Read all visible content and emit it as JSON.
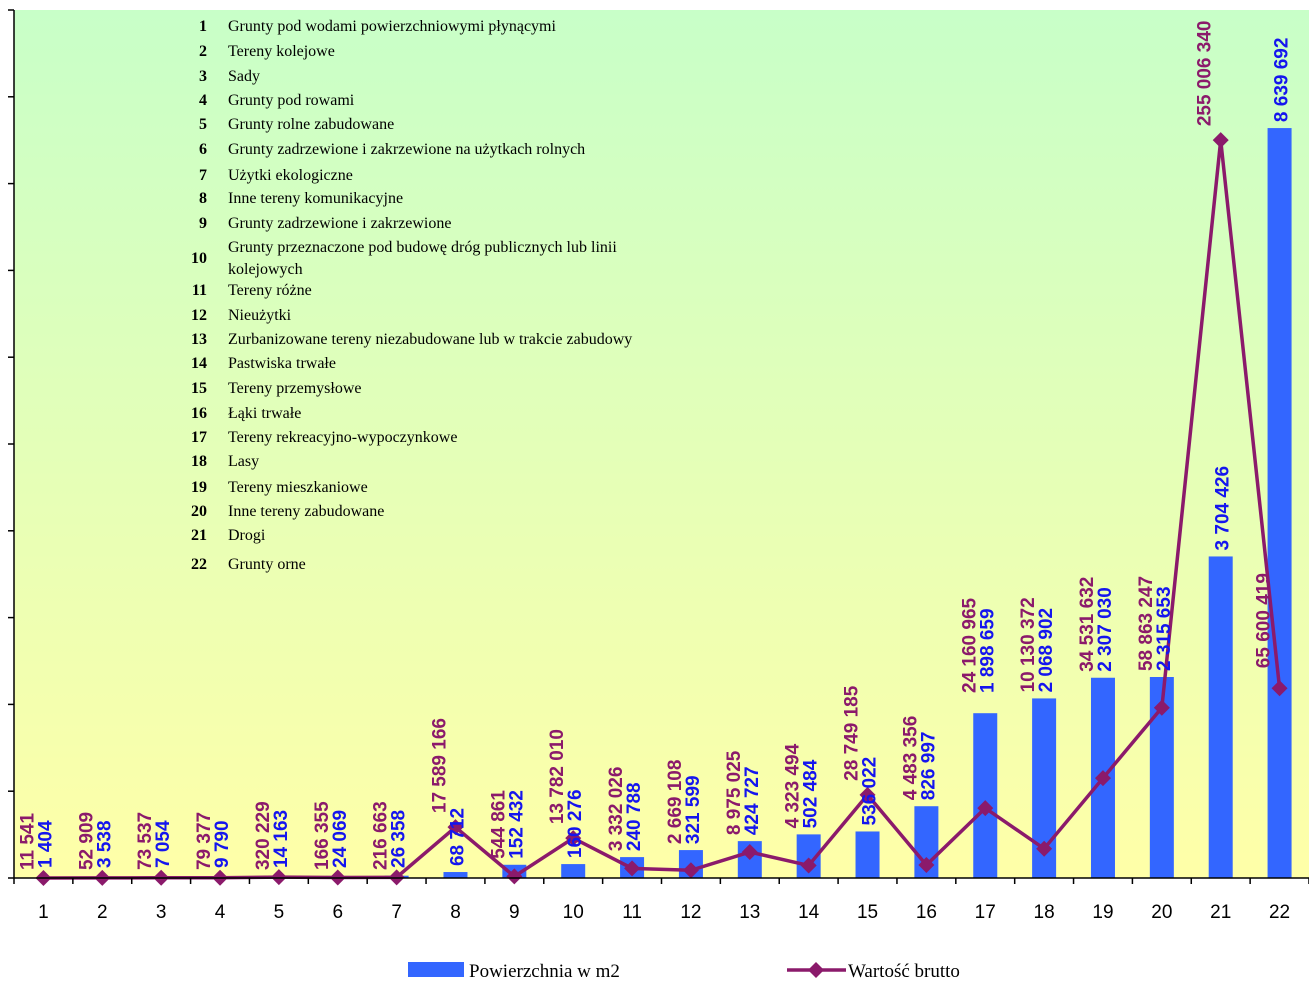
{
  "chart_data": {
    "type": "bar+line",
    "categories": [
      "1",
      "2",
      "3",
      "4",
      "5",
      "6",
      "7",
      "8",
      "9",
      "10",
      "11",
      "12",
      "13",
      "14",
      "15",
      "16",
      "17",
      "18",
      "19",
      "20",
      "21",
      "22"
    ],
    "series": [
      {
        "name": "Powierzchnia w m2",
        "type": "bar",
        "color": "#3366ff",
        "values": [
          1404,
          3538,
          7054,
          9790,
          14163,
          24069,
          26358,
          68712,
          152432,
          160276,
          240788,
          321599,
          424727,
          502484,
          536022,
          826997,
          1898659,
          2068902,
          2307030,
          2315653,
          3704426,
          8639692
        ],
        "labels": [
          "1 404",
          "3 538",
          "7 054",
          "9 790",
          "14 163",
          "24 069",
          "26 358",
          "68 712",
          "152 432",
          "160 276",
          "240 788",
          "321 599",
          "424 727",
          "502 484",
          "536 022",
          "826 997",
          "1 898 659",
          "2 068 902",
          "2 307 030",
          "2 315 653",
          "3 704 426",
          "8 639 692"
        ]
      },
      {
        "name": "Wartość brutto",
        "type": "line",
        "color": "#8b1a6b",
        "values": [
          11541,
          52909,
          73537,
          79377,
          320229,
          166355,
          216663,
          17589166,
          544861,
          13782010,
          3332026,
          2669108,
          8975025,
          4323494,
          28749185,
          4483356,
          24160965,
          10130372,
          34531632,
          58863247,
          255006340,
          65600419
        ],
        "labels": [
          "11 541",
          "52 909",
          "73 537",
          "79 377",
          "320 229",
          "166 355",
          "216 663",
          "17 589 166",
          "544 861",
          "13 782 010",
          "3 332 026",
          "2 669 108",
          "8 975 025",
          "4 323 494",
          "28 749 185",
          "4 483 356",
          "24 160 965",
          "10 130 372",
          "34 531 632",
          "58 863 247",
          "255 006 340",
          "65 600 419"
        ]
      }
    ],
    "key": [
      {
        "num": "1",
        "text": "Grunty pod wodami powierzchniowymi płynącymi"
      },
      {
        "num": "2",
        "text": "Tereny kolejowe"
      },
      {
        "num": "3",
        "text": "Sady"
      },
      {
        "num": "4",
        "text": "Grunty pod rowami"
      },
      {
        "num": "5",
        "text": "Grunty rolne zabudowane"
      },
      {
        "num": "6",
        "text": "Grunty zadrzewione i zakrzewione na użytkach rolnych"
      },
      {
        "num": "7",
        "text": "Użytki ekologiczne"
      },
      {
        "num": "8",
        "text": "Inne tereny komunikacyjne"
      },
      {
        "num": "9",
        "text": "Grunty zadrzewione i zakrzewione"
      },
      {
        "num": "10",
        "text": "Grunty przeznaczone pod budowę dróg publicznych lub linii",
        "text2": "kolejowych"
      },
      {
        "num": "11",
        "text": "Tereny różne"
      },
      {
        "num": "12",
        "text": "Nieużytki"
      },
      {
        "num": "13",
        "text": "Zurbanizowane tereny niezabudowane lub w trakcie zabudowy"
      },
      {
        "num": "14",
        "text": "Pastwiska trwałe"
      },
      {
        "num": "15",
        "text": "Tereny przemysłowe"
      },
      {
        "num": "16",
        "text": "Łąki trwałe"
      },
      {
        "num": "17",
        "text": "Tereny rekreacyjno-wypoczynkowe"
      },
      {
        "num": "18",
        "text": "Lasy"
      },
      {
        "num": "19",
        "text": "Tereny mieszkaniowe"
      },
      {
        "num": "20",
        "text": "Inne tereny zabudowane"
      },
      {
        "num": "21",
        "text": "Drogi"
      },
      {
        "num": "22",
        "text": "Grunty orne"
      }
    ],
    "legend_position": "bottom",
    "background_gradient": [
      "#c8ffc8",
      "#ffffa8"
    ],
    "grid": false
  }
}
